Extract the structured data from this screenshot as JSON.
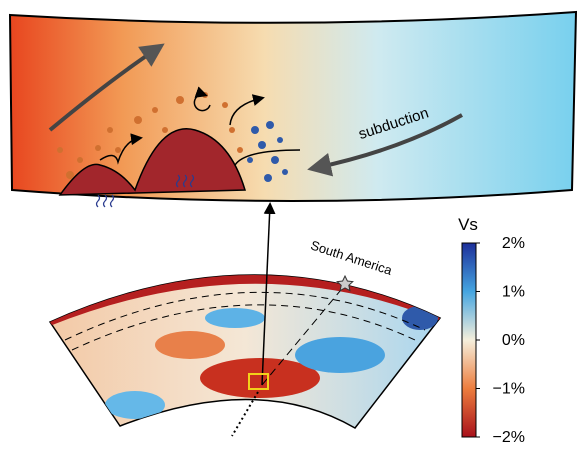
{
  "labels": {
    "process": "subduction",
    "location": "South America"
  },
  "colorbar": {
    "title": "Vs",
    "lim": [
      -2,
      2
    ],
    "ticks": [
      {
        "value": 2,
        "label": "2%"
      },
      {
        "value": 1,
        "label": "1%"
      },
      {
        "value": 0,
        "label": "0%"
      },
      {
        "value": -1,
        "label": "−1%"
      },
      {
        "value": -2,
        "label": "−2%"
      }
    ]
  }
}
